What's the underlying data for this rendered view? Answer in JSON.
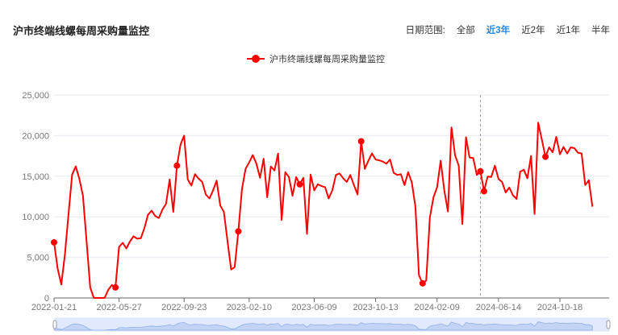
{
  "header": {
    "title": "沪市终端线螺每周采购量监控",
    "range_label": "日期范围:",
    "range_options": [
      "全部",
      "近3年",
      "近2年",
      "近1年",
      "半年"
    ],
    "range_selected": "近3年"
  },
  "colors": {
    "series": "#ff0000",
    "active": "#1e88e5",
    "grid": "#e6e9f0"
  },
  "chart_data": {
    "type": "line",
    "title": "",
    "legend": {
      "entries": [
        "沪市终端线螺每周采购量监控"
      ],
      "placement": "top-center"
    },
    "ylim": [
      0,
      25000
    ],
    "y_ticks": [
      "0",
      "5,000",
      "10,000",
      "15,000",
      "20,000",
      "25,000"
    ],
    "y_tick_values": [
      0,
      5000,
      10000,
      15000,
      20000,
      25000
    ],
    "x_tick_labels": [
      "2022-01-21",
      "2022-05-27",
      "2022-09-23",
      "2023-02-10",
      "2023-06-09",
      "2023-10-13",
      "2024-02-09",
      "2024-06-14",
      "2024-10-18"
    ],
    "x_tick_indices": [
      0,
      18,
      36,
      54,
      72,
      89,
      106,
      123,
      140
    ],
    "grid": true,
    "series": [
      {
        "name": "沪市终端线螺每周采购量监控",
        "values": [
          6850,
          3600,
          1650,
          5300,
          10300,
          15200,
          16200,
          14700,
          12600,
          7000,
          1300,
          0,
          0,
          0,
          0,
          1000,
          1600,
          1300,
          6300,
          6800,
          6100,
          6950,
          7600,
          7300,
          7350,
          8600,
          10250,
          10750,
          10100,
          9850,
          10900,
          11600,
          14600,
          10600,
          16300,
          18900,
          20000,
          14600,
          13850,
          15250,
          14700,
          14300,
          12750,
          12250,
          13250,
          14450,
          11400,
          10600,
          7000,
          3500,
          3800,
          8200,
          13400,
          15900,
          16700,
          17600,
          16550,
          14800,
          17150,
          12400,
          16200,
          15700,
          17800,
          9600,
          15500,
          14900,
          12600,
          14900,
          14000,
          14800,
          7900,
          15200,
          13250,
          14000,
          13800,
          13650,
          12250,
          13250,
          15150,
          15350,
          14750,
          14300,
          15150,
          13900,
          12750,
          19300,
          15900,
          16900,
          17800,
          17050,
          16950,
          16800,
          16550,
          17050,
          15400,
          15150,
          15250,
          13900,
          15500,
          14250,
          11250,
          2800,
          1800,
          2150,
          9900,
          12400,
          13600,
          16900,
          13250,
          10650,
          21000,
          17550,
          16300,
          9100,
          19800,
          17300,
          17250,
          15150,
          15600,
          13150,
          14950,
          14900,
          16300,
          14650,
          14300,
          13000,
          13600,
          12650,
          12200,
          15550,
          15800,
          14750,
          17500,
          10350,
          21600,
          19500,
          17400,
          18550,
          17950,
          19850,
          17700,
          18600,
          17800,
          18550,
          18450,
          17900,
          17800,
          13900,
          14500,
          11250
        ],
        "marker_indices": [
          0,
          17,
          34,
          51,
          68,
          85,
          102,
          118,
          119,
          136
        ]
      }
    ],
    "cursor_index": 118
  }
}
